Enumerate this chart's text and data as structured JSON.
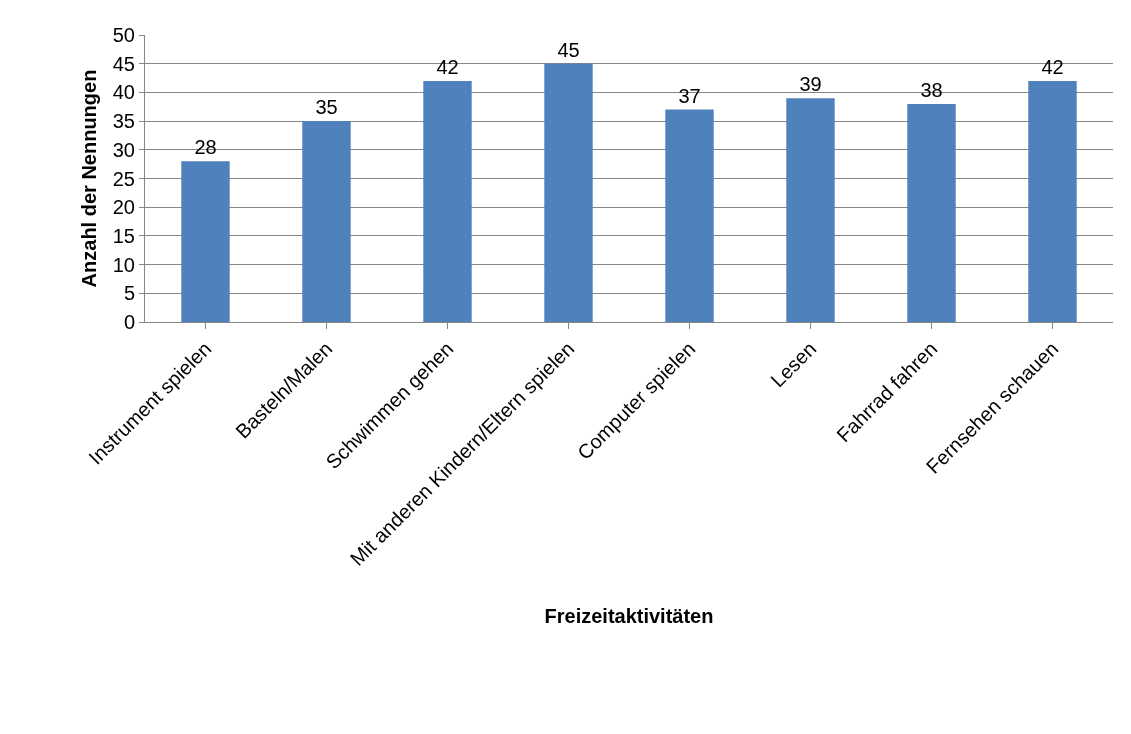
{
  "chart_data": {
    "type": "bar",
    "xlabel": "Freizeitaktivitäten",
    "ylabel": "Anzahl der Nennungen",
    "categories": [
      "Instrument spielen",
      "Basteln/Malen",
      "Schwimmen gehen",
      "Mit anderen Kindern/Eltern spielen",
      "Computer spielen",
      "Lesen",
      "Fahrrad fahren",
      "Fernsehen schauen"
    ],
    "values": [
      28,
      35,
      42,
      45,
      37,
      39,
      38,
      42
    ],
    "color": "#4f81bd",
    "ylim": [
      0,
      50
    ],
    "yticks": [
      0,
      5,
      10,
      15,
      20,
      25,
      30,
      35,
      40,
      45,
      50
    ],
    "grid": "y",
    "data_labels": true,
    "legend": false
  }
}
